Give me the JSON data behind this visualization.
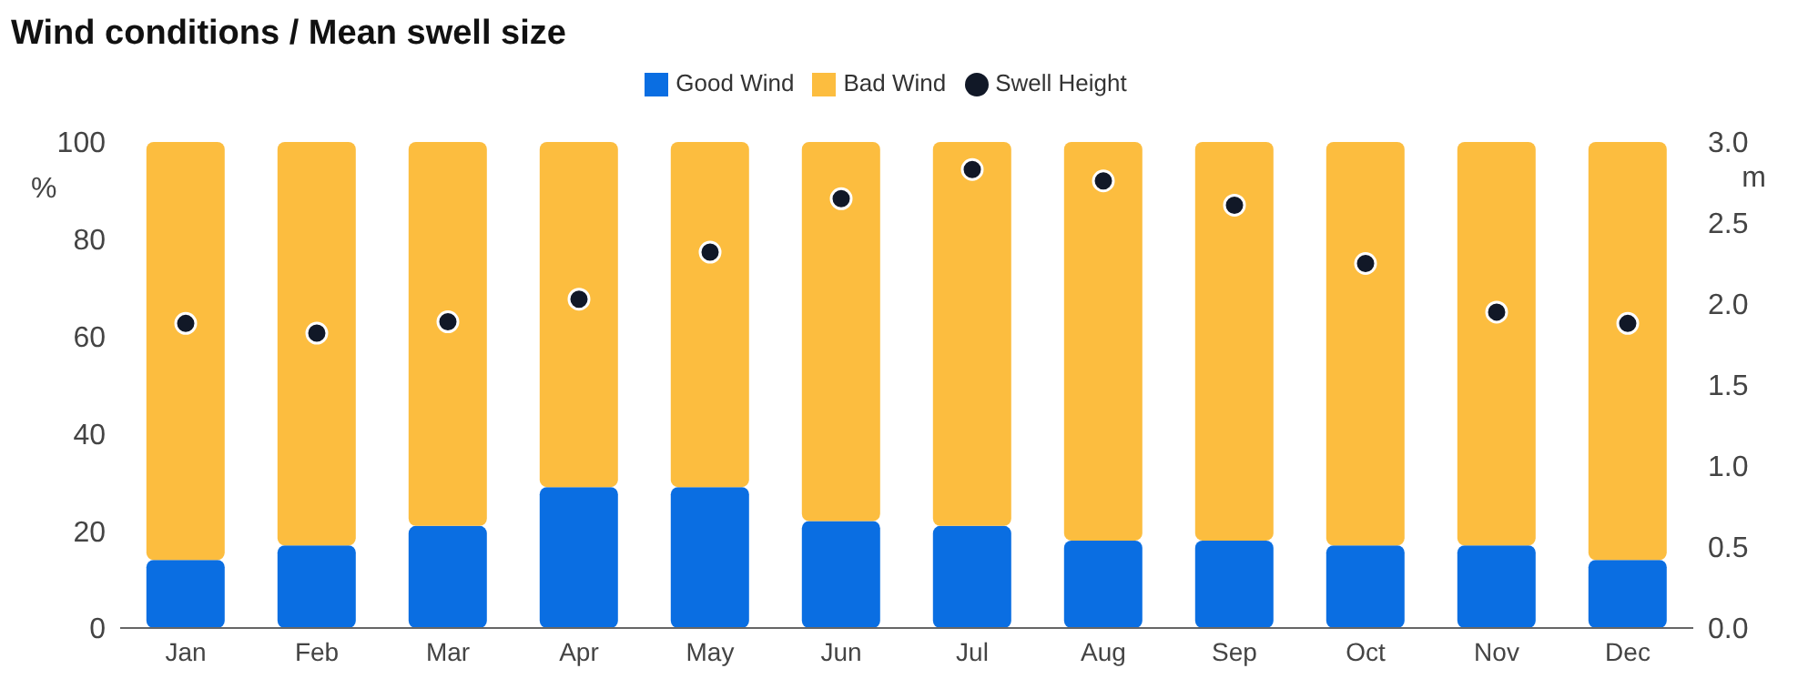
{
  "chart_data": {
    "type": "bar",
    "title": "Wind conditions / Mean swell size",
    "ylabel": "%",
    "y2label": "m",
    "categories": [
      "Jan",
      "Feb",
      "Mar",
      "Apr",
      "May",
      "Jun",
      "Jul",
      "Aug",
      "Sep",
      "Oct",
      "Nov",
      "Dec"
    ],
    "stacked": true,
    "legend": "top",
    "grid": false,
    "marker": "circle",
    "ylim": [
      0,
      100
    ],
    "yticks": [
      0,
      20,
      40,
      60,
      80,
      100
    ],
    "y2lim": [
      0,
      3
    ],
    "y2ticks": [
      {
        "value": 0,
        "label": "0.0"
      },
      {
        "value": 0.5,
        "label": "0.5"
      },
      {
        "value": 1,
        "label": "1.0"
      },
      {
        "value": 1.5,
        "label": "1.5"
      },
      {
        "value": 2,
        "label": "2.0"
      },
      {
        "value": 2.5,
        "label": "2.5"
      },
      {
        "value": 3,
        "label": "3.0"
      }
    ],
    "series": [
      {
        "name": "Good Wind",
        "color": "#0a6ee2",
        "values": [
          14,
          17,
          21,
          29,
          29,
          22,
          21,
          18,
          18,
          17,
          17,
          14
        ]
      },
      {
        "name": "Bad Wind",
        "color": "#fcbd3f",
        "values": [
          86,
          83,
          79,
          71,
          71,
          78,
          79,
          82,
          82,
          83,
          83,
          86
        ]
      },
      {
        "name": "Swell Height",
        "type": "scatter",
        "axis": "y2",
        "color": "#111827",
        "values": [
          1.88,
          1.82,
          1.89,
          2.03,
          2.32,
          2.65,
          2.83,
          2.76,
          2.61,
          2.25,
          1.95,
          1.88
        ]
      }
    ]
  }
}
